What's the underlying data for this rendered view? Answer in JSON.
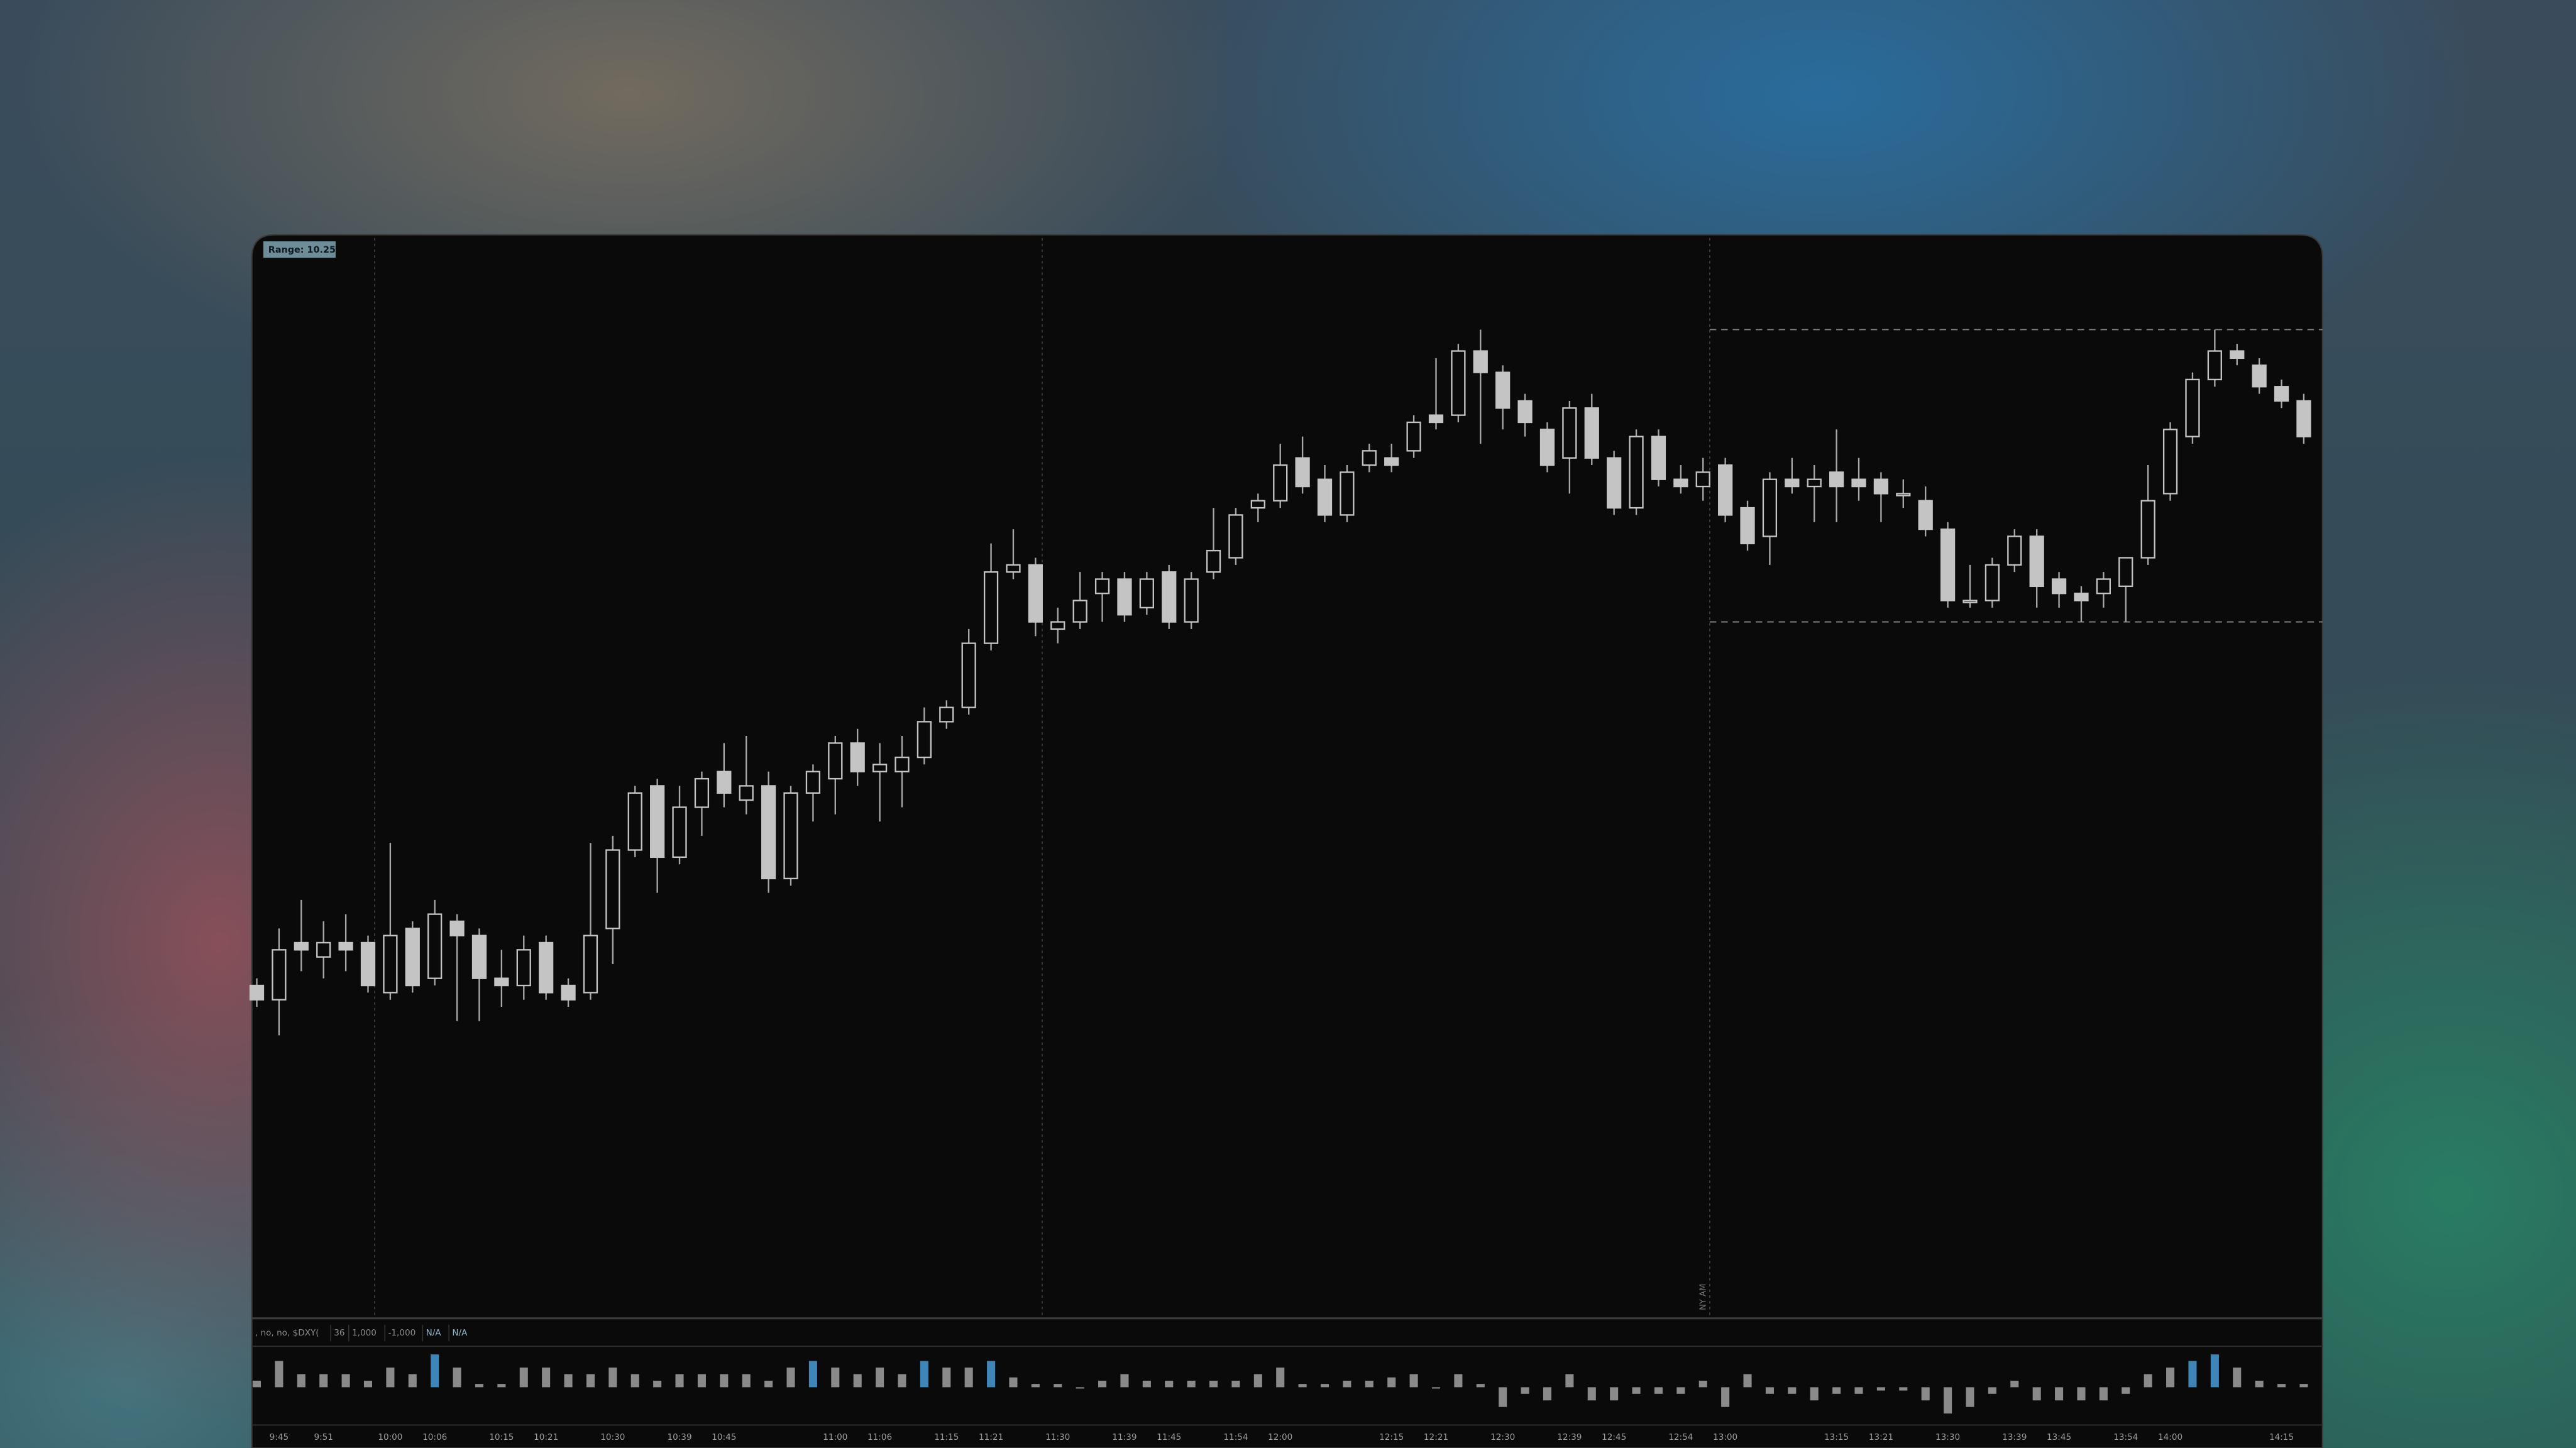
{
  "chart_data": {
    "type": "candlestick",
    "range_label": "Range: 10.25",
    "range_lines": [
      34.5,
      24.25
    ],
    "session_label": "NY AM",
    "categories": [
      null,
      "9:45",
      null,
      "9:51",
      null,
      null,
      "10:00",
      null,
      "10:06",
      null,
      null,
      "10:15",
      null,
      "10:21",
      null,
      null,
      "10:30",
      null,
      null,
      "10:39",
      null,
      "10:45",
      null,
      null,
      null,
      null,
      "11:00",
      null,
      "11:06",
      null,
      null,
      "11:15",
      null,
      "11:21",
      null,
      null,
      "11:30",
      null,
      null,
      "11:39",
      null,
      "11:45",
      null,
      null,
      "11:54",
      null,
      "12:00",
      null,
      null,
      null,
      null,
      "12:15",
      null,
      "12:21",
      null,
      null,
      "12:30",
      null,
      null,
      "12:39",
      null,
      "12:45",
      null,
      null,
      "12:54",
      null,
      "13:00",
      null,
      null,
      null,
      null,
      "13:15",
      null,
      "13:21",
      null,
      null,
      "13:30",
      null,
      null,
      "13:39",
      null,
      "13:45",
      null,
      null,
      "13:54",
      null,
      "14:00",
      null,
      null,
      null,
      null,
      "14:15",
      null
    ],
    "open": [
      11.5,
      11.0,
      13.0,
      12.5,
      13.0,
      13.0,
      11.25,
      13.5,
      11.75,
      13.75,
      13.25,
      11.75,
      11.5,
      13.0,
      11.5,
      11.25,
      13.5,
      16.25,
      18.5,
      16.0,
      17.75,
      19.0,
      18.0,
      18.5,
      15.25,
      18.25,
      18.75,
      20.0,
      19.0,
      19.0,
      19.5,
      20.75,
      21.25,
      23.5,
      26.0,
      26.25,
      24.0,
      24.25,
      25.25,
      25.75,
      24.75,
      26.0,
      24.25,
      26.0,
      26.5,
      28.25,
      28.5,
      30.0,
      29.25,
      28.0,
      29.75,
      30.0,
      30.25,
      31.5,
      31.5,
      33.75,
      33.0,
      32.0,
      31.0,
      30.0,
      31.75,
      30.0,
      28.25,
      30.75,
      29.25,
      29.0,
      29.75,
      28.25,
      27.25,
      29.25,
      29.0,
      29.5,
      29.25,
      29.25,
      28.75,
      28.5,
      27.5,
      25.0,
      25.0,
      26.25,
      27.25,
      25.75,
      25.25,
      25.25,
      25.5,
      26.5,
      28.75,
      30.75,
      32.75,
      33.75,
      33.25,
      32.5,
      32.0
    ],
    "high": [
      11.75,
      13.5,
      14.5,
      13.75,
      14.0,
      13.25,
      16.5,
      13.75,
      14.5,
      14.0,
      13.5,
      12.75,
      13.25,
      13.25,
      11.75,
      16.5,
      16.75,
      18.5,
      18.75,
      18.5,
      19.0,
      20.0,
      20.25,
      19.0,
      18.5,
      19.25,
      20.25,
      20.5,
      20.0,
      20.25,
      21.25,
      21.5,
      24.0,
      27.0,
      27.5,
      26.5,
      24.75,
      26.0,
      26.0,
      26.0,
      26.0,
      26.25,
      26.0,
      28.25,
      28.25,
      28.75,
      30.5,
      30.75,
      29.75,
      29.75,
      30.5,
      30.5,
      31.5,
      33.5,
      34.0,
      34.5,
      33.25,
      32.25,
      31.25,
      32.0,
      32.25,
      30.25,
      31.0,
      31.0,
      29.75,
      30.0,
      30.0,
      28.5,
      29.5,
      30.0,
      29.75,
      31.0,
      30.0,
      29.5,
      29.25,
      29.0,
      27.75,
      26.25,
      26.5,
      27.5,
      27.5,
      26.0,
      25.5,
      26.0,
      26.5,
      29.75,
      31.25,
      33.0,
      34.5,
      34.0,
      33.5,
      32.75,
      32.25
    ],
    "low": [
      10.75,
      9.75,
      12.0,
      11.75,
      12.0,
      11.25,
      11.0,
      11.25,
      11.5,
      10.25,
      10.25,
      10.75,
      11.0,
      11.0,
      10.75,
      11.0,
      12.25,
      16.0,
      14.75,
      15.75,
      16.75,
      17.75,
      17.5,
      14.75,
      15.0,
      17.25,
      17.5,
      18.5,
      17.25,
      17.75,
      19.25,
      20.5,
      21.0,
      23.25,
      25.75,
      23.75,
      23.5,
      24.0,
      24.25,
      24.25,
      24.5,
      24.0,
      24.0,
      25.75,
      26.25,
      27.75,
      28.25,
      28.75,
      27.75,
      27.75,
      29.5,
      29.5,
      30.0,
      31.0,
      31.25,
      30.5,
      31.0,
      30.75,
      29.5,
      28.75,
      29.75,
      28.0,
      28.0,
      29.0,
      28.75,
      28.5,
      27.75,
      26.75,
      26.25,
      28.75,
      27.75,
      27.75,
      28.5,
      27.75,
      28.25,
      27.25,
      24.75,
      24.75,
      24.75,
      26.0,
      24.75,
      24.75,
      24.25,
      24.75,
      24.25,
      26.25,
      28.5,
      30.5,
      32.5,
      33.25,
      32.25,
      31.75,
      30.5
    ],
    "close": [
      11.0,
      12.75,
      12.75,
      13.0,
      12.75,
      11.5,
      13.25,
      11.5,
      14.0,
      13.25,
      11.75,
      11.5,
      12.75,
      11.25,
      11.0,
      13.25,
      16.25,
      18.25,
      16.0,
      17.75,
      18.75,
      18.25,
      18.5,
      15.25,
      18.25,
      19.0,
      20.0,
      19.0,
      19.25,
      19.5,
      20.75,
      21.25,
      23.5,
      26.0,
      26.25,
      24.25,
      24.25,
      25.0,
      25.75,
      24.5,
      25.75,
      24.25,
      25.75,
      26.75,
      28.0,
      28.5,
      29.75,
      29.0,
      28.0,
      29.5,
      30.25,
      29.75,
      31.25,
      31.25,
      33.75,
      33.0,
      31.75,
      31.25,
      29.75,
      31.75,
      30.0,
      28.25,
      30.75,
      29.25,
      29.0,
      29.5,
      28.0,
      27.0,
      29.25,
      29.0,
      29.25,
      29.0,
      29.0,
      28.75,
      28.75,
      27.5,
      25.0,
      25.0,
      26.25,
      27.25,
      25.5,
      25.25,
      25.0,
      25.75,
      26.5,
      28.5,
      31.0,
      32.75,
      33.75,
      33.5,
      32.5,
      32.0,
      30.75
    ],
    "color": "#c4c4c4",
    "ylim": [
      0,
      38
    ],
    "study_legend": [
      ", no, no, $DXY(",
      "36",
      "1,000",
      "-1,000",
      "N/A",
      "N/A"
    ],
    "volume": {
      "values": [
        2,
        8,
        4,
        4,
        4,
        2,
        6,
        4,
        10,
        6,
        1,
        1,
        6,
        6,
        4,
        4,
        6,
        4,
        2,
        4,
        4,
        4,
        4,
        2,
        6,
        8,
        6,
        4,
        6,
        4,
        8,
        6,
        6,
        8,
        3,
        1,
        1,
        0,
        2,
        4,
        2,
        2,
        2,
        2,
        2,
        4,
        6,
        1,
        1,
        2,
        2,
        3,
        4,
        0,
        4,
        1,
        -6,
        -2,
        -4,
        4,
        -4,
        -4,
        -2,
        -2,
        -2,
        2,
        -6,
        4,
        -2,
        -2,
        -4,
        -2,
        -2,
        -1,
        -1,
        -4,
        -8,
        -6,
        -2,
        2,
        -4,
        -4,
        -4,
        -4,
        -2,
        4,
        6,
        8,
        10,
        6,
        2,
        1,
        1
      ],
      "ylim": [
        -10,
        10
      ],
      "color": "#8a8a8a",
      "highlight_color": "#3f86b8",
      "highlighted": [
        8,
        25,
        30,
        33,
        87,
        88
      ]
    }
  }
}
